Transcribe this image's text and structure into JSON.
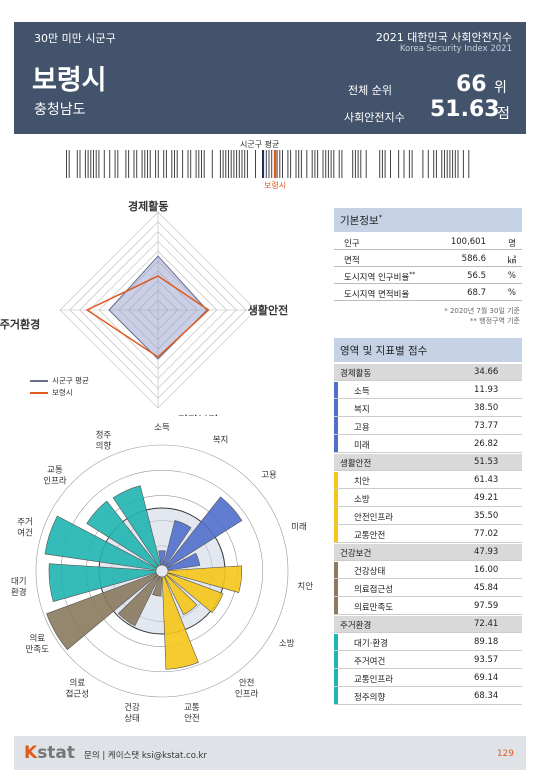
{
  "header": {
    "tag": "30만 미만 시군구",
    "index_title": "2021 대한민국 사회안전지수",
    "index_title_en": "Korea Security Index 2021",
    "city": "보령시",
    "province": "충청남도",
    "rank_label": "전체 순위",
    "rank_value": "66",
    "rank_unit": "위",
    "score_label": "사회안전지수",
    "score_value": "51.63",
    "score_unit": "점"
  },
  "marker": {
    "avg_label": "시군구 평균",
    "city_label": "보령시"
  },
  "radar": {
    "axes": [
      "경제활동",
      "생활안전",
      "건강보건",
      "주거환경"
    ],
    "average": [
      55,
      50,
      50,
      50
    ],
    "city": [
      34.66,
      51.53,
      47.93,
      72.41
    ],
    "legend_avg": "시군구 평균",
    "legend_city": "보령시",
    "color_avg": "#6b6f8f",
    "color_city": "#e05a1f"
  },
  "polar": {
    "labels": [
      "소득",
      "복지",
      "고용",
      "미래",
      "치안",
      "소방",
      "안전\n인프라",
      "교통\n안전",
      "건강\n상태",
      "의료\n접근성",
      "의료\n만족도",
      "대기\n환경",
      "주거\n여건",
      "교통\n인프라",
      "정주\n의향"
    ],
    "values": [
      11.93,
      38.5,
      73.77,
      26.82,
      61.43,
      49.21,
      35.5,
      77.02,
      16.0,
      45.84,
      97.59,
      89.18,
      93.57,
      69.14,
      68.34
    ],
    "colors": [
      "#4f6fcc",
      "#4f6fcc",
      "#4f6fcc",
      "#4f6fcc",
      "#f5c518",
      "#f5c518",
      "#f5c518",
      "#f5c518",
      "#8a7a5e",
      "#8a7a5e",
      "#8a7a5e",
      "#1fb5b0",
      "#1fb5b0",
      "#1fb5b0",
      "#1fb5b0"
    ]
  },
  "info": {
    "title": "기본정보",
    "title_sup": "*",
    "rows": [
      {
        "label": "인구",
        "value": "100,601",
        "unit": "명"
      },
      {
        "label": "면적",
        "value": "586.6",
        "unit": "㎢"
      },
      {
        "label": "도시지역 인구비율",
        "label_sup": "**",
        "value": "56.5",
        "unit": "%"
      },
      {
        "label": "도시지역 면적비율",
        "value": "68.7",
        "unit": "%"
      }
    ],
    "note1": "* 2020년 7월 30일 기준",
    "note2": "** 행정구역 기준"
  },
  "domains_title": "영역 및 지표별 점수",
  "domains": [
    {
      "name": "경제활동",
      "score": "34.66",
      "color": "#4f6fcc",
      "items": [
        {
          "name": "소득",
          "score": "11.93"
        },
        {
          "name": "복지",
          "score": "38.50"
        },
        {
          "name": "고용",
          "score": "73.77"
        },
        {
          "name": "미래",
          "score": "26.82"
        }
      ]
    },
    {
      "name": "생활안전",
      "score": "51.53",
      "color": "#f5c518",
      "items": [
        {
          "name": "치안",
          "score": "61.43"
        },
        {
          "name": "소방",
          "score": "49.21"
        },
        {
          "name": "안전인프라",
          "score": "35.50"
        },
        {
          "name": "교통안전",
          "score": "77.02"
        }
      ]
    },
    {
      "name": "건강보건",
      "score": "47.93",
      "color": "#8a7a5e",
      "items": [
        {
          "name": "건강상태",
          "score": "16.00"
        },
        {
          "name": "의료접근성",
          "score": "45.84"
        },
        {
          "name": "의료만족도",
          "score": "97.59"
        }
      ]
    },
    {
      "name": "주거환경",
      "score": "72.41",
      "color": "#1fb5b0",
      "items": [
        {
          "name": "대기·환경",
          "score": "89.18"
        },
        {
          "name": "주거여건",
          "score": "93.57"
        },
        {
          "name": "교통인프라",
          "score": "69.14"
        },
        {
          "name": "정주의향",
          "score": "68.34"
        }
      ]
    }
  ],
  "footer": {
    "logo_k": "K",
    "logo_rest": "stat",
    "contact": "문의 | 케이스탯 ksi@kstat.co.kr",
    "page": "129"
  }
}
